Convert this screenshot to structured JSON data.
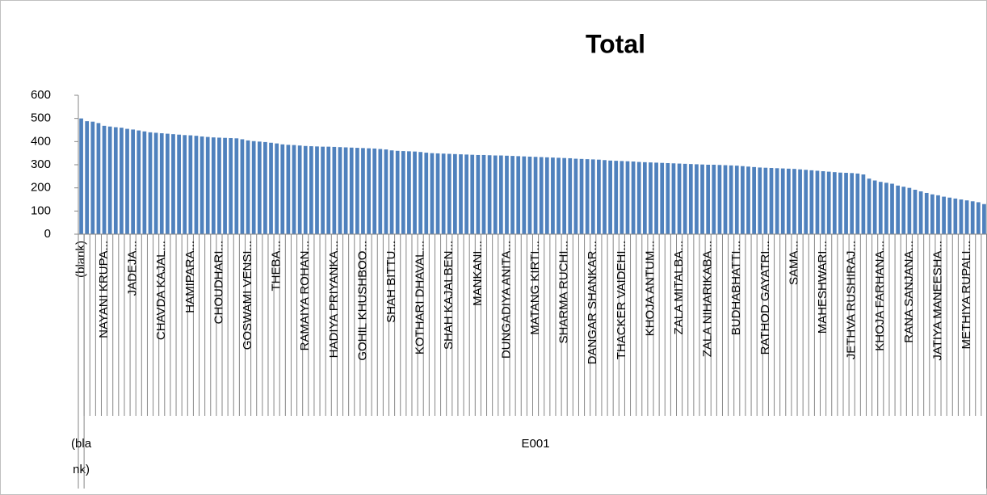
{
  "chart_data": {
    "type": "bar",
    "title": "Total",
    "categories": [
      "(blank)",
      null,
      null,
      null,
      "NAYANI KRUPA...",
      null,
      null,
      null,
      null,
      "JADEJA...",
      null,
      null,
      null,
      null,
      "CHAVDA KAJAL...",
      null,
      null,
      null,
      null,
      "HAMIPARA...",
      null,
      null,
      null,
      null,
      "CHOUDHARI...",
      null,
      null,
      null,
      null,
      "GOSWAMI VENSI...",
      null,
      null,
      null,
      null,
      "THEBA...",
      null,
      null,
      null,
      null,
      "RAMAIYA ROHAN...",
      null,
      null,
      null,
      null,
      "HADIYA PRIYANKA...",
      null,
      null,
      null,
      null,
      "GOHIL KHUSHBOO...",
      null,
      null,
      null,
      null,
      "SHAH BITTU...",
      null,
      null,
      null,
      null,
      "KOTHARI DHAVAL...",
      null,
      null,
      null,
      null,
      "SHAH KAJALBEN...",
      null,
      null,
      null,
      null,
      "MANKANI...",
      null,
      null,
      null,
      null,
      "DUNGADIYA ANITA...",
      null,
      null,
      null,
      null,
      "MATANG KIRTI...",
      null,
      null,
      null,
      null,
      "SHARMA RUCHI...",
      null,
      null,
      null,
      null,
      "DANGAR SHANKAR...",
      null,
      null,
      null,
      null,
      "THACKER VAIDEHI...",
      null,
      null,
      null,
      null,
      "KHOJA ANTUM...",
      null,
      null,
      null,
      null,
      "ZALA MITALBA...",
      null,
      null,
      null,
      null,
      "ZALA NIHARIKABA...",
      null,
      null,
      null,
      null,
      "BUDHABHATTI...",
      null,
      null,
      null,
      null,
      "RATHOD GAYATRI...",
      null,
      null,
      null,
      null,
      "SAMA...",
      null,
      null,
      null,
      null,
      "MAHESHWARI...",
      null,
      null,
      null,
      null,
      "JETHVA RUSHIRAJ...",
      null,
      null,
      null,
      null,
      "KHOJA FARHANA...",
      null,
      null,
      null,
      null,
      "RANA SANJANA...",
      null,
      null,
      null,
      null,
      "JATIYA MANEESHA...",
      null,
      null,
      null,
      null,
      "METHIYA RUPALI...",
      null,
      null,
      null
    ],
    "values": [
      500,
      488,
      486,
      480,
      468,
      465,
      462,
      460,
      455,
      452,
      448,
      444,
      440,
      438,
      436,
      434,
      432,
      430,
      428,
      427,
      425,
      422,
      420,
      418,
      417,
      416,
      415,
      414,
      410,
      405,
      402,
      400,
      398,
      395,
      392,
      388,
      386,
      385,
      383,
      381,
      380,
      379,
      378,
      378,
      377,
      376,
      375,
      374,
      373,
      372,
      371,
      370,
      368,
      366,
      362,
      360,
      359,
      358,
      357,
      355,
      352,
      350,
      349,
      348,
      347,
      346,
      345,
      344,
      343,
      342,
      342,
      341,
      340,
      340,
      339,
      338,
      337,
      336,
      335,
      334,
      333,
      332,
      331,
      330,
      329,
      328,
      326,
      325,
      324,
      323,
      322,
      320,
      318,
      317,
      316,
      315,
      314,
      312,
      311,
      310,
      309,
      308,
      307,
      306,
      305,
      304,
      303,
      302,
      301,
      300,
      300,
      299,
      298,
      297,
      296,
      294,
      292,
      290,
      288,
      287,
      286,
      285,
      284,
      283,
      282,
      280,
      278,
      276,
      274,
      272,
      270,
      268,
      266,
      265,
      264,
      262,
      258,
      240,
      232,
      226,
      222,
      218,
      210,
      205,
      200,
      192,
      185,
      178,
      172,
      168,
      162,
      158,
      154,
      150,
      146,
      142,
      138,
      130
    ],
    "groups": [
      {
        "name": "(blank)",
        "size": 1
      },
      {
        "name": "E001",
        "size": 157
      }
    ],
    "color": "#4f81bd",
    "ylim": [
      0,
      600
    ],
    "yticks": [
      0,
      100,
      200,
      300,
      400,
      500,
      600
    ],
    "grid": false
  }
}
